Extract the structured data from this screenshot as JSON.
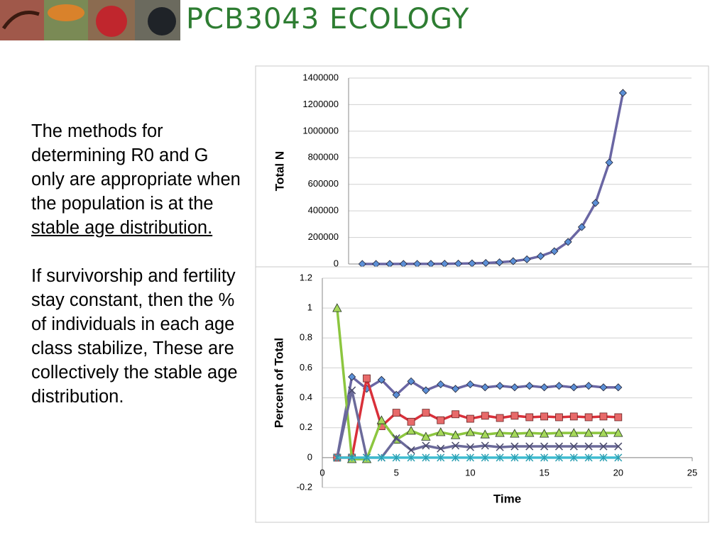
{
  "header": {
    "title": "PCB3043 ECOLOGY"
  },
  "text": {
    "paragraph1": "The methods for determining R0 and G only are appropriate when the population is at the ",
    "paragraph1_underlined": "stable age distribution.",
    "paragraph2": "If survivorship and fertility stay constant, then the % of individuals in each age class stabilize, These are collectively the stable age distribution."
  },
  "chart_data": [
    {
      "type": "line",
      "y_label": "Total N",
      "x": [
        1,
        2,
        3,
        4,
        5,
        6,
        7,
        8,
        9,
        10,
        11,
        12,
        13,
        14,
        15,
        16,
        17,
        18,
        19,
        20
      ],
      "series": [
        {
          "color": "#6a66a3",
          "marker_color": "#5b8fd6",
          "marker": "diamond",
          "values": [
            80,
            130,
            220,
            360,
            600,
            1000,
            1600,
            2700,
            4500,
            7600,
            12600,
            21000,
            35000,
            59000,
            96000,
            166000,
            278000,
            460000,
            764000,
            1288000
          ]
        }
      ],
      "xlim": [
        0,
        25
      ],
      "ylim": [
        0,
        1400000
      ],
      "yticks": [
        0,
        200000,
        400000,
        600000,
        800000,
        1000000,
        1200000,
        1400000
      ],
      "grid": true
    },
    {
      "type": "line",
      "y_label": "Percent of Total",
      "x_label": "Time",
      "x": [
        1,
        2,
        3,
        4,
        5,
        6,
        7,
        8,
        9,
        10,
        11,
        12,
        13,
        14,
        15,
        16,
        17,
        18,
        19,
        20
      ],
      "series": [
        {
          "color": "#6a66a3",
          "marker_color": "#5b8fd6",
          "marker": "diamond",
          "values": [
            0,
            0.54,
            0.46,
            0.52,
            0.42,
            0.51,
            0.45,
            0.49,
            0.46,
            0.49,
            0.47,
            0.48,
            0.47,
            0.48,
            0.47,
            0.48,
            0.47,
            0.48,
            0.47,
            0.47
          ]
        },
        {
          "color": "#d9303a",
          "marker_color": "#e86a6a",
          "marker": "square",
          "values": [
            0,
            0,
            0.53,
            0.21,
            0.3,
            0.24,
            0.3,
            0.25,
            0.29,
            0.26,
            0.28,
            0.265,
            0.28,
            0.27,
            0.275,
            0.27,
            0.275,
            0.27,
            0.275,
            0.27
          ]
        },
        {
          "color": "#8cc63f",
          "marker_color": "#a6d95a",
          "marker": "triangle",
          "values": [
            1,
            -0.01,
            -0.01,
            0.25,
            0.12,
            0.18,
            0.14,
            0.17,
            0.15,
            0.17,
            0.155,
            0.165,
            0.16,
            0.165,
            0.16,
            0.165,
            0.165,
            0.165,
            0.165,
            0.165
          ]
        },
        {
          "color": "#6b6a9a",
          "marker_color": "#4a4a6a",
          "marker": "x",
          "values": [
            0,
            0.45,
            0,
            0,
            0.13,
            0.05,
            0.08,
            0.06,
            0.08,
            0.07,
            0.08,
            0.07,
            0.075,
            0.075,
            0.075,
            0.075,
            0.075,
            0.075,
            0.075,
            0.075
          ]
        },
        {
          "color": "#3fbcd0",
          "marker_color": "#2a9fb2",
          "marker": "star",
          "values": [
            0,
            0,
            0,
            0,
            0,
            0,
            0,
            0,
            0,
            0,
            0,
            0,
            0,
            0,
            0,
            0,
            0,
            0,
            0,
            0
          ]
        }
      ],
      "xlim": [
        0,
        25
      ],
      "ylim": [
        -0.2,
        1.2
      ],
      "xticks": [
        0,
        5,
        10,
        15,
        20,
        25
      ],
      "yticks": [
        -0.2,
        0,
        0.2,
        0.4,
        0.6,
        0.8,
        1,
        1.2
      ],
      "grid": true
    }
  ]
}
